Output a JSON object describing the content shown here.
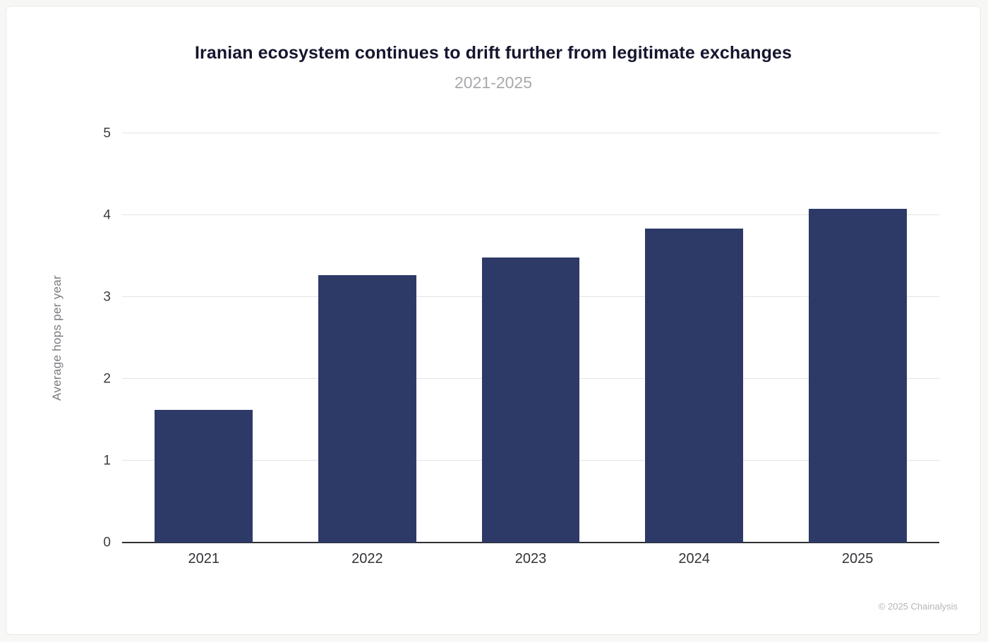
{
  "chart_data": {
    "type": "bar",
    "title": "Iranian ecosystem continues to drift further from legitimate exchanges",
    "subtitle": "2021-2025",
    "categories": [
      "2021",
      "2022",
      "2023",
      "2024",
      "2025"
    ],
    "values": [
      1.62,
      3.27,
      3.48,
      3.84,
      4.08
    ],
    "xlabel": "",
    "ylabel": "Average hops per year",
    "ylim": [
      0,
      5
    ],
    "yticks": [
      0,
      1,
      2,
      3,
      4,
      5
    ],
    "grid": true,
    "legend": false,
    "legend_position": "none",
    "bar_color": "#2d3a68"
  },
  "footer": {
    "copyright": "© 2025 Chainalysis"
  },
  "colors": {
    "bar": "#2d3a68",
    "gridline": "#e4e4e6",
    "axis": "#2f2f33",
    "title": "#15152e",
    "subtitle": "#a9a9ad",
    "footer_text": "#b6b6ba"
  }
}
